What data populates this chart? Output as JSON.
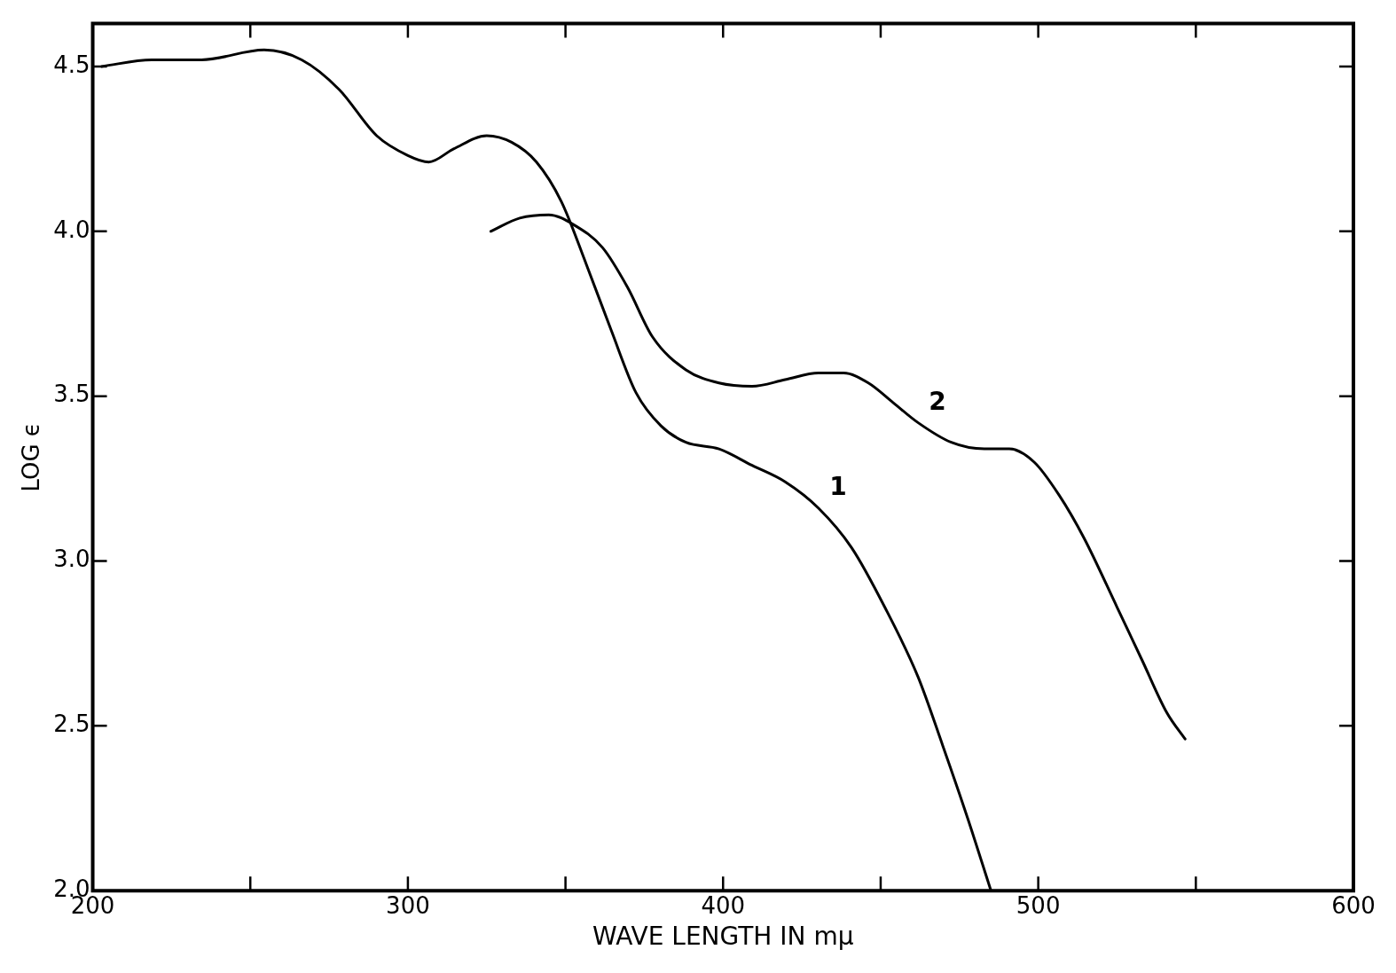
{
  "chart_data": {
    "type": "line",
    "xlabel": "WAVE LENGTH IN mμ",
    "ylabel": "LOG ϵ",
    "xlim": [
      200,
      600
    ],
    "ylim": [
      2.0,
      4.63
    ],
    "xticks": [
      200,
      {
        "value": 250,
        "label": null
      },
      300,
      {
        "value": 350,
        "label": null
      },
      400,
      {
        "value": 450,
        "label": null
      },
      500,
      {
        "value": 550,
        "label": null
      },
      600
    ],
    "yticks": [
      {
        "value": 2.0,
        "label": "2.0"
      },
      2.5,
      {
        "value": 3.0,
        "label": "3.0"
      },
      3.5,
      {
        "value": 4.0,
        "label": "4.0"
      },
      4.5
    ],
    "marker": "none",
    "line_style": "solid",
    "legend": false,
    "series": [
      {
        "name": "1",
        "color": "#000000",
        "x": [
          202.8,
          218.7,
          234.5,
          254.4,
          266.3,
          278.2,
          290.1,
          300,
          306.6,
          314.5,
          325,
          332.9,
          340.8,
          348.7,
          356.6,
          364.5,
          372.4,
          380.3,
          388.2,
          398.7,
          409.2,
          419.7,
          430.3,
          440.8,
          451.3,
          461.8,
          469.7,
          477.6,
          485
        ],
        "values": [
          4.5,
          4.52,
          4.52,
          4.55,
          4.52,
          4.43,
          4.29,
          4.23,
          4.21,
          4.25,
          4.29,
          4.27,
          4.21,
          4.09,
          3.9,
          3.7,
          3.51,
          3.41,
          3.36,
          3.34,
          3.29,
          3.24,
          3.16,
          3.04,
          2.86,
          2.65,
          2.44,
          2.22,
          2.0
        ]
      },
      {
        "name": "2",
        "color": "#000000",
        "x": [
          326.3,
          335.5,
          344.7,
          352.6,
          361.8,
          369.7,
          377.6,
          388.2,
          398.7,
          409.2,
          419.7,
          430.3,
          438.2,
          446.1,
          454,
          461.8,
          472.4,
          482.9,
          490.8,
          498.7,
          506.6,
          514.5,
          525,
          532.9,
          540.8,
          546.6
        ],
        "values": [
          4.0,
          4.04,
          4.05,
          4.02,
          3.95,
          3.83,
          3.68,
          3.58,
          3.54,
          3.53,
          3.55,
          3.57,
          3.57,
          3.54,
          3.48,
          3.42,
          3.36,
          3.34,
          3.34,
          3.3,
          3.2,
          3.07,
          2.86,
          2.7,
          2.54,
          2.46
        ]
      }
    ]
  }
}
